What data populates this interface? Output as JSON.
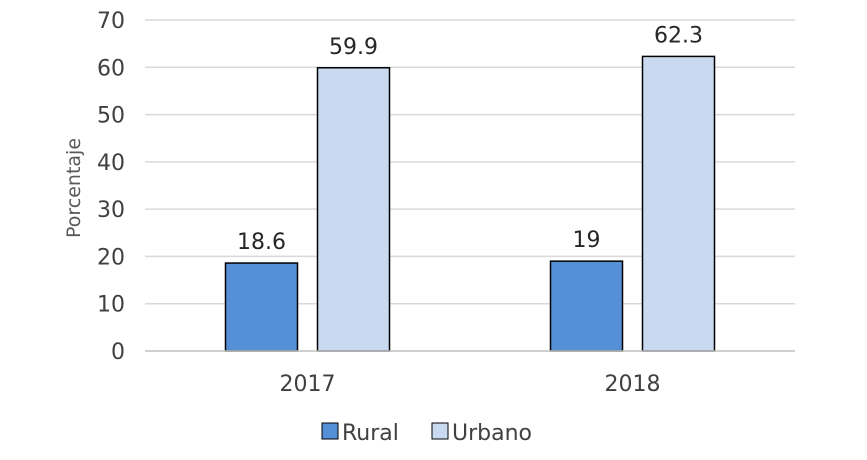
{
  "chart_data": {
    "type": "bar",
    "title": "",
    "xlabel": "",
    "ylabel": "Porcentaje",
    "ylim": [
      0,
      70
    ],
    "yticks": [
      0,
      10,
      20,
      30,
      40,
      50,
      60,
      70
    ],
    "categories": [
      "2017",
      "2018"
    ],
    "series": [
      {
        "name": "Rural",
        "values": [
          18.6,
          19
        ],
        "labels": [
          "18.6",
          "19"
        ],
        "color": "#5590d6"
      },
      {
        "name": "Urbano",
        "values": [
          59.9,
          62.3
        ],
        "labels": [
          "59.9",
          "62.3"
        ],
        "color": "#c9daf0"
      }
    ],
    "grid": true,
    "legend_position": "bottom",
    "bar_outline_color": "#000000"
  }
}
